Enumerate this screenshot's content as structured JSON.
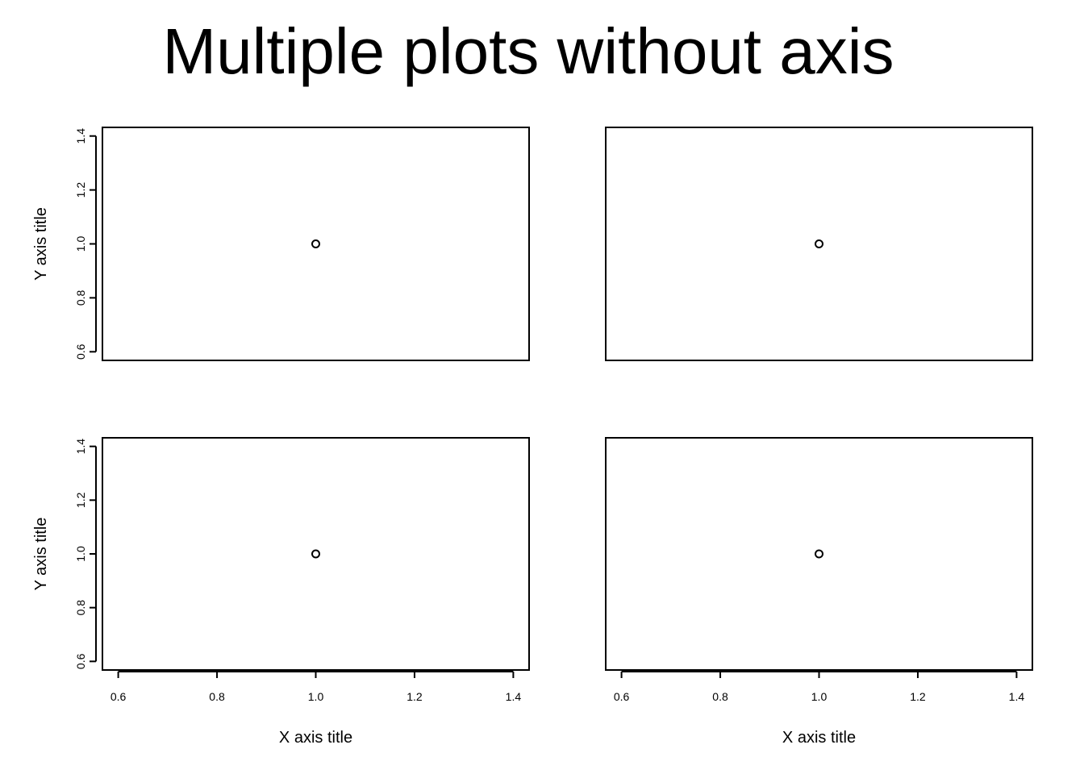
{
  "figure": {
    "title": "Multiple plots without axis",
    "layout": {
      "rows": 2,
      "cols": 2
    }
  },
  "chart_data": [
    {
      "type": "scatter",
      "panel": "top-left",
      "x": [
        1.0
      ],
      "y": [
        1.0
      ],
      "xlim": [
        0.6,
        1.4
      ],
      "ylim": [
        0.6,
        1.4
      ],
      "x_ticks": [],
      "y_ticks": [
        "0.6",
        "0.8",
        "1.0",
        "1.2",
        "1.4"
      ],
      "xlabel": "",
      "ylabel": "Y axis title",
      "marker": "open-circle",
      "grid": false,
      "legend": "none"
    },
    {
      "type": "scatter",
      "panel": "top-right",
      "x": [
        1.0
      ],
      "y": [
        1.0
      ],
      "xlim": [
        0.6,
        1.4
      ],
      "ylim": [
        0.6,
        1.4
      ],
      "x_ticks": [],
      "y_ticks": [],
      "xlabel": "",
      "ylabel": "",
      "marker": "open-circle",
      "grid": false,
      "legend": "none"
    },
    {
      "type": "scatter",
      "panel": "bottom-left",
      "x": [
        1.0
      ],
      "y": [
        1.0
      ],
      "xlim": [
        0.6,
        1.4
      ],
      "ylim": [
        0.6,
        1.4
      ],
      "x_ticks": [
        "0.6",
        "0.8",
        "1.0",
        "1.2",
        "1.4"
      ],
      "y_ticks": [
        "0.6",
        "0.8",
        "1.0",
        "1.2",
        "1.4"
      ],
      "xlabel": "X axis title",
      "ylabel": "Y axis title",
      "marker": "open-circle",
      "grid": false,
      "legend": "none"
    },
    {
      "type": "scatter",
      "panel": "bottom-right",
      "x": [
        1.0
      ],
      "y": [
        1.0
      ],
      "xlim": [
        0.6,
        1.4
      ],
      "ylim": [
        0.6,
        1.4
      ],
      "x_ticks": [
        "0.6",
        "0.8",
        "1.0",
        "1.2",
        "1.4"
      ],
      "y_ticks": [],
      "xlabel": "X axis title",
      "ylabel": "",
      "marker": "open-circle",
      "grid": false,
      "legend": "none"
    }
  ]
}
